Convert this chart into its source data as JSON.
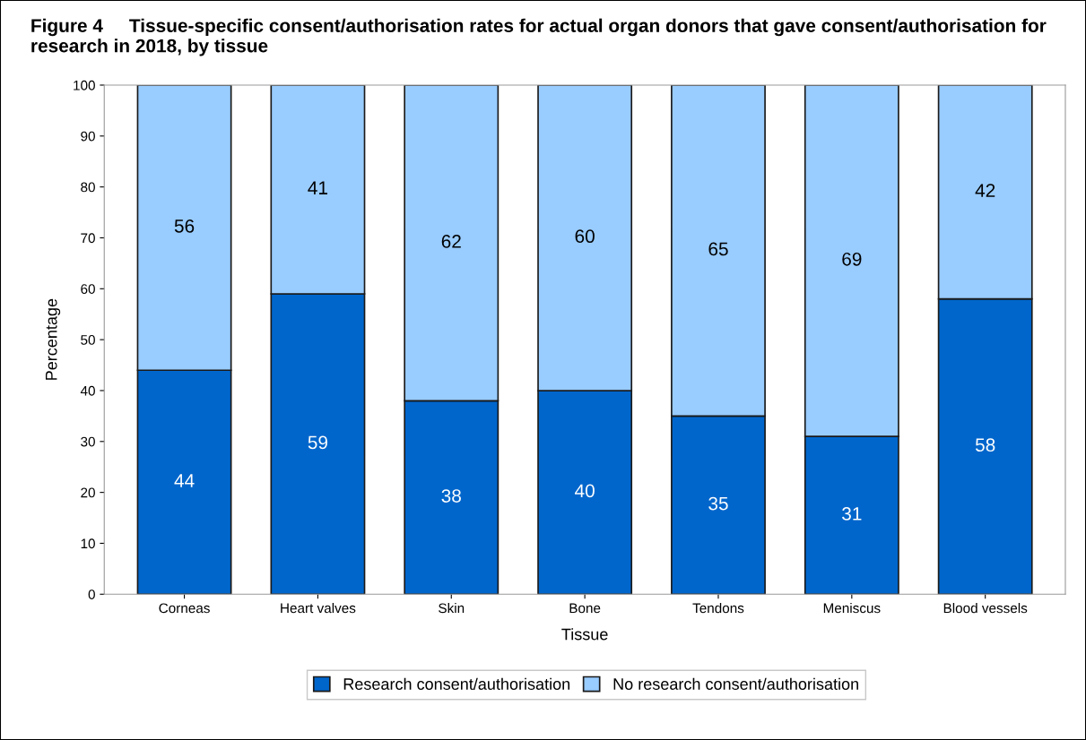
{
  "chart_data": {
    "type": "bar",
    "stacked": true,
    "title": "Figure 4     Tissue-specific consent/authorisation rates for actual organ donors that gave consent/authorisation for research in 2018, by tissue",
    "xlabel": "Tissue",
    "ylabel": "Percentage",
    "categories": [
      "Corneas",
      "Heart valves",
      "Skin",
      "Bone",
      "Tendons",
      "Meniscus",
      "Blood vessels"
    ],
    "series": [
      {
        "name": "Research consent/authorisation",
        "color": "#0066cc",
        "values": [
          44,
          59,
          38,
          40,
          35,
          31,
          58
        ]
      },
      {
        "name": "No research consent/authorisation",
        "color": "#99ccff",
        "values": [
          56,
          41,
          62,
          60,
          65,
          69,
          42
        ]
      }
    ],
    "ylim": [
      0,
      100
    ],
    "yticks": [
      0,
      10,
      20,
      30,
      40,
      50,
      60,
      70,
      80,
      90,
      100
    ],
    "data_labels": true,
    "grid": false,
    "legend": "bottom"
  }
}
